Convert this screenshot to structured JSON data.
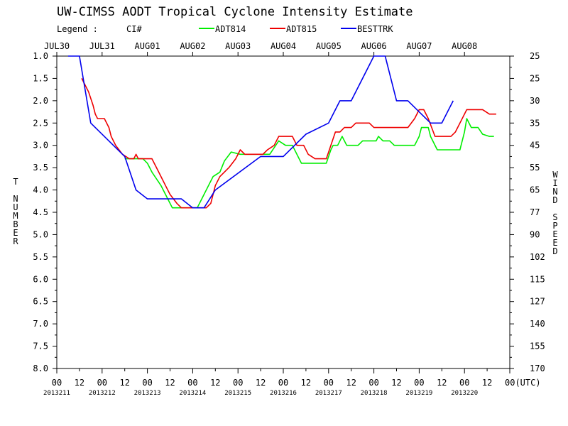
{
  "chart_data": {
    "type": "line",
    "title": "UW-CIMSS AODT Tropical Cyclone Intensity Estimate",
    "legend_label": "Legend :",
    "legend_ci": "CI#",
    "ylabel_left": "T NUMBER",
    "ylabel_right": "WIND SPEED",
    "xlim": [
      0,
      10
    ],
    "ylim": [
      1.0,
      8.0
    ],
    "y_inverted": true,
    "grid": false,
    "legend_position": "top",
    "date_ticks": [
      "JUL30",
      "JUL31",
      "AUG01",
      "AUG02",
      "AUG03",
      "AUG04",
      "AUG05",
      "AUG06",
      "AUG07",
      "AUG08"
    ],
    "hour_ticks": [
      "00",
      "12",
      "00",
      "12",
      "00",
      "12",
      "00",
      "12",
      "00",
      "12",
      "00",
      "12",
      "00",
      "12",
      "00",
      "12",
      "00",
      "12",
      "00",
      "12",
      "00(UTC)"
    ],
    "julian_ticks": [
      "2013211",
      "2013212",
      "2013213",
      "2013214",
      "2013215",
      "2013216",
      "2013217",
      "2013218",
      "2013219",
      "2013220"
    ],
    "left_ticks": [
      "1.0",
      "1.5",
      "2.0",
      "2.5",
      "3.0",
      "3.5",
      "4.0",
      "4.5",
      "5.0",
      "5.5",
      "6.0",
      "6.5",
      "7.0",
      "7.5",
      "8.0"
    ],
    "right_ticks": [
      "25",
      "25",
      "30",
      "35",
      "45",
      "55",
      "65",
      "77",
      "90",
      "102",
      "115",
      "127",
      "140",
      "155",
      "170"
    ],
    "series": [
      {
        "name": "ADT814",
        "color": "#00ee00",
        "points": [
          [
            1.5,
            3.3
          ],
          [
            1.9,
            3.3
          ],
          [
            2.0,
            3.4
          ],
          [
            2.1,
            3.6
          ],
          [
            2.3,
            3.9
          ],
          [
            2.45,
            4.2
          ],
          [
            2.55,
            4.4
          ],
          [
            3.1,
            4.4
          ],
          [
            3.2,
            4.2
          ],
          [
            3.35,
            3.9
          ],
          [
            3.45,
            3.7
          ],
          [
            3.6,
            3.6
          ],
          [
            3.7,
            3.35
          ],
          [
            3.85,
            3.15
          ],
          [
            4.05,
            3.2
          ],
          [
            4.2,
            3.2
          ],
          [
            4.5,
            3.2
          ],
          [
            4.7,
            3.2
          ],
          [
            4.8,
            3.05
          ],
          [
            4.9,
            2.9
          ],
          [
            5.05,
            3.0
          ],
          [
            5.2,
            3.0
          ],
          [
            5.4,
            3.4
          ],
          [
            5.95,
            3.4
          ],
          [
            6.05,
            3.1
          ],
          [
            6.1,
            3.0
          ],
          [
            6.2,
            3.0
          ],
          [
            6.3,
            2.8
          ],
          [
            6.4,
            3.0
          ],
          [
            6.65,
            3.0
          ],
          [
            6.75,
            2.9
          ],
          [
            7.05,
            2.9
          ],
          [
            7.1,
            2.8
          ],
          [
            7.2,
            2.9
          ],
          [
            7.35,
            2.9
          ],
          [
            7.45,
            3.0
          ],
          [
            7.9,
            3.0
          ],
          [
            8.0,
            2.8
          ],
          [
            8.05,
            2.6
          ],
          [
            8.2,
            2.6
          ],
          [
            8.25,
            2.8
          ],
          [
            8.4,
            3.1
          ],
          [
            8.9,
            3.1
          ],
          [
            9.0,
            2.7
          ],
          [
            9.05,
            2.4
          ],
          [
            9.15,
            2.6
          ],
          [
            9.3,
            2.6
          ],
          [
            9.4,
            2.75
          ],
          [
            9.55,
            2.8
          ],
          [
            9.65,
            2.8
          ]
        ]
      },
      {
        "name": "ADT815",
        "color": "#ee0000",
        "points": [
          [
            0.55,
            1.5
          ],
          [
            0.7,
            1.8
          ],
          [
            0.8,
            2.1
          ],
          [
            0.85,
            2.3
          ],
          [
            0.9,
            2.4
          ],
          [
            1.05,
            2.4
          ],
          [
            1.15,
            2.6
          ],
          [
            1.2,
            2.8
          ],
          [
            1.3,
            3.0
          ],
          [
            1.45,
            3.2
          ],
          [
            1.6,
            3.3
          ],
          [
            1.7,
            3.3
          ],
          [
            1.75,
            3.2
          ],
          [
            1.8,
            3.3
          ],
          [
            2.1,
            3.3
          ],
          [
            2.2,
            3.5
          ],
          [
            2.4,
            3.9
          ],
          [
            2.5,
            4.1
          ],
          [
            2.65,
            4.3
          ],
          [
            2.75,
            4.4
          ],
          [
            3.1,
            4.4
          ],
          [
            3.3,
            4.4
          ],
          [
            3.4,
            4.3
          ],
          [
            3.5,
            3.9
          ],
          [
            3.6,
            3.7
          ],
          [
            3.8,
            3.5
          ],
          [
            3.95,
            3.3
          ],
          [
            4.05,
            3.1
          ],
          [
            4.15,
            3.2
          ],
          [
            4.3,
            3.2
          ],
          [
            4.55,
            3.2
          ],
          [
            4.65,
            3.1
          ],
          [
            4.8,
            3.0
          ],
          [
            4.9,
            2.8
          ],
          [
            5.2,
            2.8
          ],
          [
            5.3,
            3.0
          ],
          [
            5.45,
            3.0
          ],
          [
            5.55,
            3.2
          ],
          [
            5.7,
            3.3
          ],
          [
            5.95,
            3.3
          ],
          [
            6.05,
            3.0
          ],
          [
            6.15,
            2.7
          ],
          [
            6.25,
            2.7
          ],
          [
            6.35,
            2.6
          ],
          [
            6.5,
            2.6
          ],
          [
            6.6,
            2.5
          ],
          [
            6.9,
            2.5
          ],
          [
            7.0,
            2.6
          ],
          [
            7.3,
            2.6
          ],
          [
            7.6,
            2.6
          ],
          [
            7.75,
            2.6
          ],
          [
            7.9,
            2.4
          ],
          [
            8.0,
            2.2
          ],
          [
            8.1,
            2.2
          ],
          [
            8.2,
            2.4
          ],
          [
            8.35,
            2.8
          ],
          [
            8.7,
            2.8
          ],
          [
            8.8,
            2.7
          ],
          [
            8.9,
            2.5
          ],
          [
            9.05,
            2.2
          ],
          [
            9.4,
            2.2
          ],
          [
            9.55,
            2.3
          ],
          [
            9.7,
            2.3
          ]
        ]
      },
      {
        "name": "BESTTRK",
        "color": "#0000ee",
        "points": [
          [
            0.25,
            1.0
          ],
          [
            0.5,
            1.0
          ],
          [
            0.75,
            2.5
          ],
          [
            1.5,
            3.25
          ],
          [
            1.75,
            4.0
          ],
          [
            2.0,
            4.2
          ],
          [
            2.75,
            4.2
          ],
          [
            3.0,
            4.4
          ],
          [
            3.25,
            4.4
          ],
          [
            3.5,
            4.0
          ],
          [
            4.5,
            3.25
          ],
          [
            4.75,
            3.25
          ],
          [
            5.0,
            3.25
          ],
          [
            5.5,
            2.75
          ],
          [
            6.0,
            2.5
          ],
          [
            6.25,
            2.0
          ],
          [
            6.5,
            2.0
          ],
          [
            7.0,
            1.0
          ],
          [
            7.25,
            1.0
          ],
          [
            7.5,
            2.0
          ],
          [
            7.75,
            2.0
          ],
          [
            8.25,
            2.5
          ],
          [
            8.5,
            2.5
          ],
          [
            8.75,
            2.0
          ]
        ]
      }
    ]
  }
}
